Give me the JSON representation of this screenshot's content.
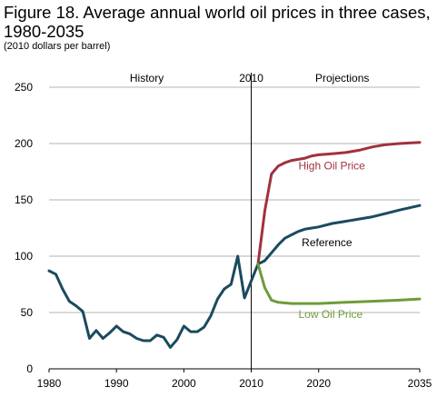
{
  "title": "Figure 18. Average annual world oil prices in three cases, 1980-2035",
  "subtitle": "(2010 dollars per barrel)",
  "chart_data": {
    "type": "line",
    "title": "Figure 18. Average annual world oil prices in three cases, 1980-2035",
    "subtitle": "(2010 dollars per barrel)",
    "xlim": [
      1980,
      2035
    ],
    "ylim": [
      0,
      250
    ],
    "x_ticks": [
      1980,
      1990,
      2000,
      2010,
      2020,
      2035
    ],
    "y_ticks": [
      0,
      50,
      100,
      150,
      200,
      250
    ],
    "grid": true,
    "annotations": {
      "history": "History",
      "split_year": "2010",
      "projections": "Projections",
      "split_x": 2010
    },
    "series": [
      {
        "name": "History",
        "color": "#1b4a5f",
        "points": [
          [
            1980,
            87
          ],
          [
            1981,
            84
          ],
          [
            1982,
            71
          ],
          [
            1983,
            60
          ],
          [
            1984,
            56
          ],
          [
            1985,
            51
          ],
          [
            1986,
            27
          ],
          [
            1987,
            34
          ],
          [
            1988,
            27
          ],
          [
            1989,
            32
          ],
          [
            1990,
            38
          ],
          [
            1991,
            33
          ],
          [
            1992,
            31
          ],
          [
            1993,
            27
          ],
          [
            1994,
            25
          ],
          [
            1995,
            25
          ],
          [
            1996,
            30
          ],
          [
            1997,
            28
          ],
          [
            1998,
            19
          ],
          [
            1999,
            26
          ],
          [
            2000,
            38
          ],
          [
            2001,
            33
          ],
          [
            2002,
            33
          ],
          [
            2003,
            37
          ],
          [
            2004,
            47
          ],
          [
            2005,
            62
          ],
          [
            2006,
            71
          ],
          [
            2007,
            75
          ],
          [
            2008,
            100
          ],
          [
            2009,
            63
          ],
          [
            2010,
            78
          ],
          [
            2011,
            93
          ]
        ]
      },
      {
        "name": "High Oil Price",
        "color": "#a0323e",
        "points": [
          [
            2011,
            93
          ],
          [
            2012,
            140
          ],
          [
            2013,
            173
          ],
          [
            2014,
            180
          ],
          [
            2015,
            183
          ],
          [
            2016,
            185
          ],
          [
            2017,
            186
          ],
          [
            2018,
            187
          ],
          [
            2019,
            189
          ],
          [
            2020,
            190
          ],
          [
            2022,
            191
          ],
          [
            2024,
            192
          ],
          [
            2026,
            194
          ],
          [
            2028,
            197
          ],
          [
            2030,
            199
          ],
          [
            2032,
            200
          ],
          [
            2035,
            201
          ]
        ]
      },
      {
        "name": "Reference",
        "color": "#1b4a5f",
        "points": [
          [
            2011,
            93
          ],
          [
            2012,
            96
          ],
          [
            2013,
            103
          ],
          [
            2014,
            110
          ],
          [
            2015,
            116
          ],
          [
            2016,
            119
          ],
          [
            2017,
            122
          ],
          [
            2018,
            124
          ],
          [
            2019,
            125
          ],
          [
            2020,
            126
          ],
          [
            2022,
            129
          ],
          [
            2024,
            131
          ],
          [
            2026,
            133
          ],
          [
            2028,
            135
          ],
          [
            2030,
            138
          ],
          [
            2032,
            141
          ],
          [
            2035,
            145
          ]
        ]
      },
      {
        "name": "Low Oil Price",
        "color": "#6e9c3a",
        "points": [
          [
            2011,
            93
          ],
          [
            2012,
            72
          ],
          [
            2013,
            61
          ],
          [
            2014,
            59
          ],
          [
            2016,
            58
          ],
          [
            2020,
            58
          ],
          [
            2024,
            59
          ],
          [
            2028,
            60
          ],
          [
            2032,
            61
          ],
          [
            2035,
            62
          ]
        ]
      }
    ],
    "series_labels": [
      {
        "series": "High Oil Price",
        "text": "High Oil Price",
        "x": 2017,
        "y": 177
      },
      {
        "series": "Reference",
        "text": "Reference",
        "x": 2017.5,
        "y": 109
      },
      {
        "series": "Low Oil Price",
        "text": "Low Oil Price",
        "x": 2017,
        "y": 45
      }
    ]
  }
}
